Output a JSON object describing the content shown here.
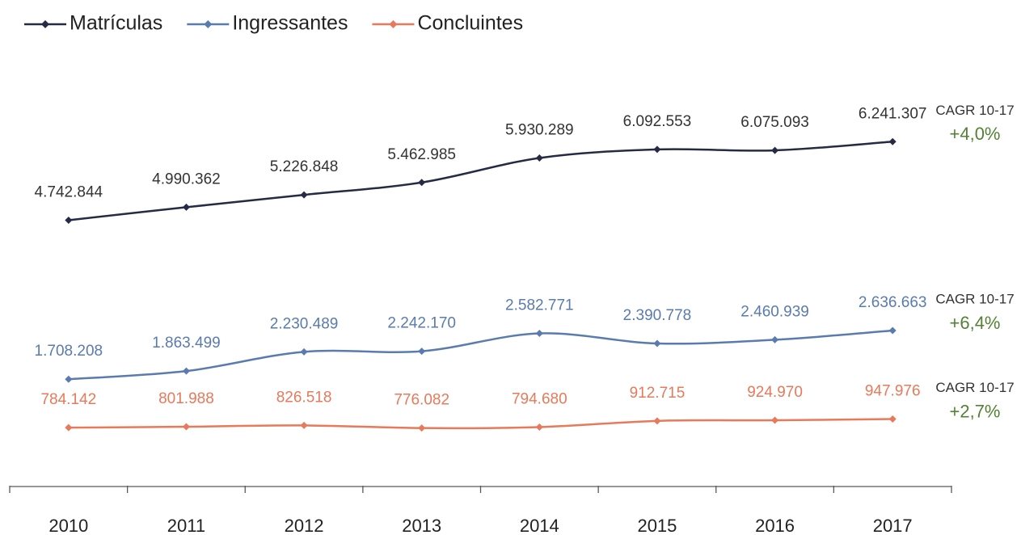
{
  "chart_data": {
    "type": "line",
    "categories": [
      "2010",
      "2011",
      "2012",
      "2013",
      "2014",
      "2015",
      "2016",
      "2017"
    ],
    "ylim": [
      0,
      6400000
    ],
    "legend": "top-left",
    "series": [
      {
        "name": "Matrículas",
        "color": "#262b45",
        "values": [
          4742844,
          4990362,
          5226848,
          5462985,
          5930289,
          6092553,
          6075093,
          6241307
        ],
        "value_labels": [
          "4.742.844",
          "4.990.362",
          "5.226.848",
          "5.462.985",
          "5.930.289",
          "6.092.553",
          "6.075.093",
          "6.241.307"
        ],
        "annotation": "CAGR 10-17",
        "growth": "+4,0%"
      },
      {
        "name": "Ingressantes",
        "color": "#5a7bb0",
        "values": [
          1708208,
          1863499,
          2230489,
          2242170,
          2582771,
          2390778,
          2460939,
          2636663
        ],
        "value_labels": [
          "1.708.208",
          "1.863.499",
          "2.230.489",
          "2.242.170",
          "2.582.771",
          "2.390.778",
          "2.460.939",
          "2.636.663"
        ],
        "annotation": "CAGR 10-17",
        "growth": "+6,4%"
      },
      {
        "name": "Concluintes",
        "color": "#e8795a",
        "values": [
          784142,
          801988,
          826518,
          776082,
          794680,
          912715,
          924970,
          947976
        ],
        "value_labels": [
          "784.142",
          "801.988",
          "826.518",
          "776.082",
          "794.680",
          "912.715",
          "924.970",
          "947.976"
        ],
        "annotation": "CAGR 10-17",
        "growth": "+2,7%"
      }
    ],
    "growth_color": "#548235"
  }
}
